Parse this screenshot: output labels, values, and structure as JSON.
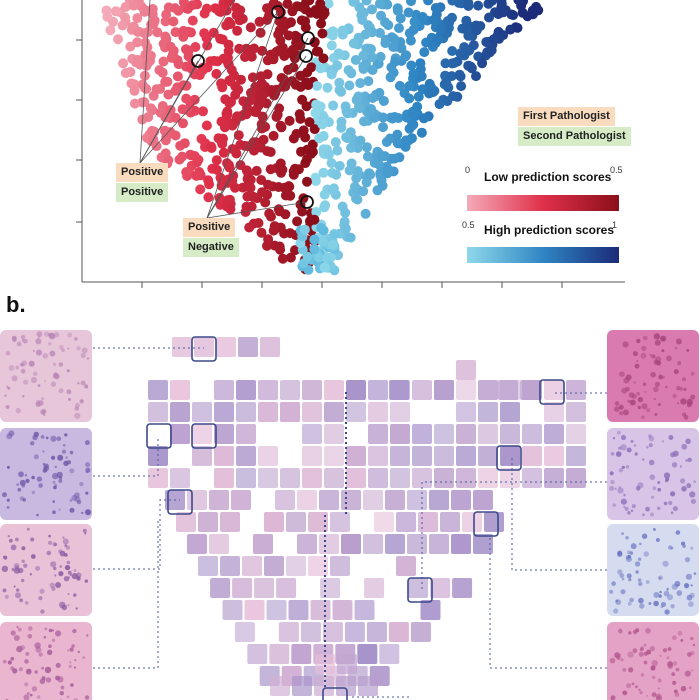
{
  "panel_b_label": "b.",
  "legend": {
    "first": "First Pathologist",
    "second": "Second Pathologist"
  },
  "annotations": [
    {
      "first": "Positive",
      "second": "Positive"
    },
    {
      "first": "Positive",
      "second": "Negative"
    }
  ],
  "colorbars": [
    {
      "title": "Low prediction scores",
      "min_label": "0",
      "max_label": "0.5",
      "colors": [
        "#f4aab8",
        "#e0304a",
        "#8b0f1a"
      ]
    },
    {
      "title": "High prediction scores",
      "min_label": "0.5",
      "max_label": "1",
      "colors": [
        "#8fd8ea",
        "#2f86c4",
        "#1c2a78"
      ]
    }
  ],
  "colors": {
    "low": "#d9263b",
    "high": "#2f86c4",
    "tile_border": "#3b4a8a",
    "tissue_pink": "#e7bfd9",
    "tissue_purple": "#a390c9"
  }
}
